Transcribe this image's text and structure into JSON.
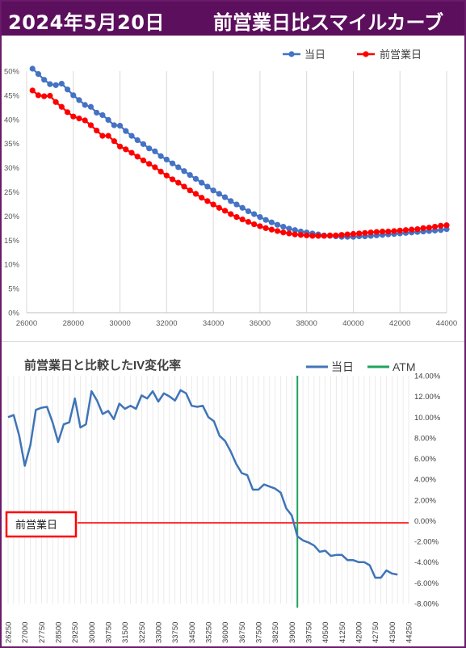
{
  "header": {
    "date": "2024年5月20日",
    "title": "前営業日比スマイルカーブ"
  },
  "colors": {
    "header_bg": "#5c0f5c",
    "today": "#4472c4",
    "prev_day": "#ff0000",
    "atm": "#1fa35a",
    "line2": "#3f74b8"
  },
  "chart_data": [
    {
      "type": "line",
      "legend": [
        "当日",
        "前営業日"
      ],
      "legend_position": "top-right",
      "x_ticks": [
        "26000",
        "28000",
        "30000",
        "32000",
        "34000",
        "36000",
        "38000",
        "40000",
        "42000",
        "44000"
      ],
      "y_ticks": [
        "0%",
        "5%",
        "10%",
        "15%",
        "20%",
        "25%",
        "30%",
        "35%",
        "40%",
        "45%",
        "50%"
      ],
      "xlim": [
        26000,
        44000
      ],
      "ylim": [
        0,
        50
      ],
      "grid": "vertical",
      "x": [
        26250,
        26500,
        26750,
        27000,
        27250,
        27500,
        27750,
        28000,
        28250,
        28500,
        28750,
        29000,
        29250,
        29500,
        29750,
        30000,
        30250,
        30500,
        30750,
        31000,
        31250,
        31500,
        31750,
        32000,
        32250,
        32500,
        32750,
        33000,
        33250,
        33500,
        33750,
        34000,
        34250,
        34500,
        34750,
        35000,
        35250,
        35500,
        35750,
        36000,
        36250,
        36500,
        36750,
        37000,
        37250,
        37500,
        37750,
        38000,
        38250,
        38500,
        38750,
        39000,
        39250,
        39500,
        39750,
        40000,
        40250,
        40500,
        40750,
        41000,
        41250,
        41500,
        41750,
        42000,
        42250,
        42500,
        42750,
        43000,
        43250,
        43500,
        43750,
        44000
      ],
      "series": [
        {
          "name": "当日",
          "values": [
            50.5,
            49.4,
            48.2,
            47.3,
            47.1,
            47.4,
            46.2,
            45.0,
            44.0,
            43.0,
            42.6,
            41.4,
            40.9,
            39.9,
            38.8,
            38.7,
            37.6,
            36.6,
            35.7,
            34.9,
            34.0,
            33.4,
            32.4,
            31.7,
            30.9,
            30.1,
            29.3,
            28.5,
            27.7,
            26.9,
            26.1,
            25.3,
            24.6,
            23.9,
            23.1,
            22.4,
            21.7,
            21.0,
            20.4,
            19.8,
            19.2,
            18.7,
            18.2,
            17.8,
            17.4,
            17.1,
            16.8,
            16.6,
            16.4,
            16.2,
            16.0,
            15.9,
            15.8,
            15.7,
            15.7,
            15.7,
            15.8,
            15.8,
            15.9,
            16.0,
            16.1,
            16.2,
            16.3,
            16.4,
            16.5,
            16.6,
            16.7,
            16.8,
            16.9,
            17.0,
            17.1,
            17.3
          ]
        },
        {
          "name": "前営業日",
          "values": [
            46.0,
            45.0,
            44.8,
            44.9,
            43.6,
            42.6,
            41.5,
            40.6,
            40.2,
            39.8,
            38.8,
            37.7,
            36.6,
            36.6,
            35.5,
            34.4,
            33.8,
            33.1,
            32.3,
            31.5,
            30.8,
            30.1,
            29.2,
            28.4,
            27.6,
            26.9,
            26.1,
            25.3,
            24.6,
            23.8,
            23.1,
            22.4,
            21.7,
            21.1,
            20.4,
            19.8,
            19.3,
            18.8,
            18.3,
            17.9,
            17.5,
            17.2,
            16.9,
            16.6,
            16.4,
            16.2,
            16.1,
            16.0,
            15.9,
            15.9,
            15.9,
            16.0,
            16.0,
            16.1,
            16.2,
            16.3,
            16.4,
            16.5,
            16.6,
            16.7,
            16.8,
            16.8,
            16.9,
            17.0,
            17.1,
            17.2,
            17.3,
            17.5,
            17.6,
            17.8,
            18.0,
            18.1
          ]
        }
      ]
    },
    {
      "type": "line",
      "title": "前営業日と比較したIV変化率",
      "legend": [
        "当日",
        "ATM"
      ],
      "legend_position": "top-right",
      "y_ticks": [
        "14.00%",
        "12.00%",
        "10.00%",
        "8.00%",
        "6.00%",
        "4.00%",
        "2.00%",
        "0.00%",
        "-2.00%",
        "-4.00%",
        "-6.00%",
        "-8.00%"
      ],
      "ylim": [
        -8,
        14
      ],
      "x_ticks": [
        "26250",
        "27000",
        "27750",
        "28500",
        "29250",
        "30000",
        "30750",
        "31500",
        "32250",
        "33000",
        "33750",
        "34500",
        "35250",
        "36000",
        "36750",
        "37500",
        "38250",
        "39000",
        "39750",
        "40500",
        "41250",
        "42000",
        "42750",
        "43500",
        "44250"
      ],
      "xlim": [
        26250,
        44250
      ],
      "atm": 39250,
      "baseline_label": "前営業日",
      "x": [
        26250,
        26500,
        26750,
        27000,
        27250,
        27500,
        27750,
        28000,
        28250,
        28500,
        28750,
        29000,
        29250,
        29500,
        29750,
        30000,
        30250,
        30500,
        30750,
        31000,
        31250,
        31500,
        31750,
        32000,
        32250,
        32500,
        32750,
        33000,
        33250,
        33500,
        33750,
        34000,
        34250,
        34500,
        34750,
        35000,
        35250,
        35500,
        35750,
        36000,
        36250,
        36500,
        36750,
        37000,
        37250,
        37500,
        37750,
        38000,
        38250,
        38500,
        38750,
        39000,
        39250,
        39500,
        39750,
        40000,
        40250,
        40500,
        40750,
        41000,
        41250,
        41500,
        41750,
        42000,
        42250,
        42500,
        42750,
        43000,
        43250,
        43500,
        43750
      ],
      "series": [
        {
          "name": "当日",
          "values": [
            10.0,
            10.2,
            8.2,
            5.3,
            7.3,
            10.7,
            10.9,
            11.0,
            9.5,
            7.6,
            9.3,
            9.5,
            11.8,
            9.0,
            9.3,
            12.5,
            11.6,
            10.3,
            10.6,
            9.8,
            11.3,
            10.8,
            11.1,
            10.8,
            12.1,
            11.8,
            12.5,
            11.5,
            12.3,
            12.0,
            11.6,
            12.6,
            12.3,
            11.1,
            11.0,
            11.1,
            10.0,
            9.6,
            8.2,
            7.7,
            6.7,
            5.5,
            4.6,
            4.4,
            3.0,
            3.0,
            3.5,
            3.3,
            3.1,
            2.7,
            1.2,
            0.5,
            -1.5,
            -1.9,
            -2.1,
            -2.4,
            -3.0,
            -2.9,
            -3.4,
            -3.3,
            -3.3,
            -3.8,
            -3.8,
            -4.0,
            -4.0,
            -4.3,
            -5.5,
            -5.5,
            -4.8,
            -5.1,
            -5.2
          ]
        }
      ]
    }
  ]
}
